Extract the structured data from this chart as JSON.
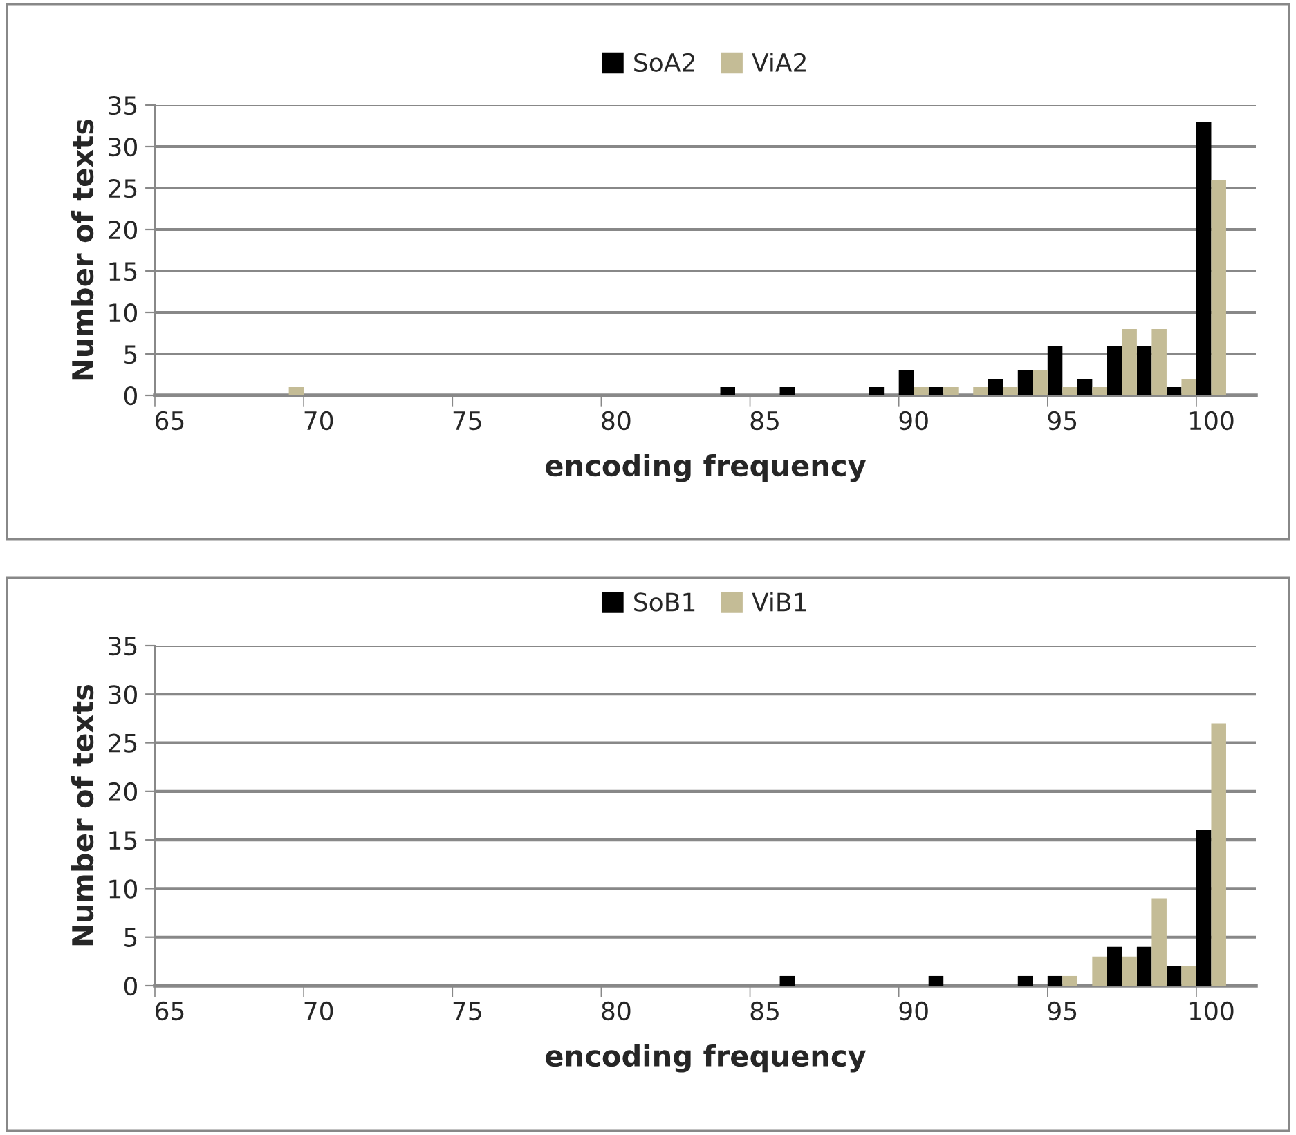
{
  "chart_data": [
    {
      "type": "bar",
      "xlabel": "encoding frequency",
      "ylabel": "Number of texts",
      "categories": [
        "65",
        null,
        null,
        null,
        null,
        "70",
        null,
        null,
        null,
        null,
        "75",
        null,
        null,
        null,
        null,
        "80",
        null,
        null,
        null,
        null,
        "85",
        null,
        null,
        null,
        null,
        "90",
        null,
        null,
        null,
        null,
        "95",
        null,
        null,
        null,
        null,
        "100",
        null
      ],
      "series": [
        {
          "name": "SoA2",
          "color": "#000000",
          "values": [
            0,
            0,
            0,
            0,
            0,
            0,
            0,
            0,
            0,
            0,
            0,
            0,
            0,
            0,
            0,
            0,
            0,
            0,
            0,
            1,
            0,
            1,
            0,
            0,
            1,
            3,
            1,
            0,
            2,
            3,
            6,
            2,
            6,
            6,
            1,
            33,
            0
          ]
        },
        {
          "name": "ViA2",
          "color": "#c4bc96",
          "values": [
            0,
            0,
            0,
            0,
            1,
            0,
            0,
            0,
            0,
            0,
            0,
            0,
            0,
            0,
            0,
            0,
            0,
            0,
            0,
            0,
            0,
            0,
            0,
            0,
            0,
            1,
            1,
            1,
            1,
            3,
            1,
            1,
            8,
            8,
            2,
            26,
            0
          ]
        }
      ],
      "ylim": [
        0,
        35
      ],
      "yticks": [
        0,
        5,
        10,
        15,
        20,
        25,
        30,
        35
      ],
      "grid": "y",
      "legend": "top"
    },
    {
      "type": "bar",
      "xlabel": "encoding frequency",
      "ylabel": "Number of texts",
      "categories": [
        "65",
        null,
        null,
        null,
        null,
        "70",
        null,
        null,
        null,
        null,
        "75",
        null,
        null,
        null,
        null,
        "80",
        null,
        null,
        null,
        null,
        "85",
        null,
        null,
        null,
        null,
        "90",
        null,
        null,
        null,
        null,
        "95",
        null,
        null,
        null,
        null,
        "100",
        null
      ],
      "series": [
        {
          "name": "SoB1",
          "color": "#000000",
          "values": [
            0,
            0,
            0,
            0,
            0,
            0,
            0,
            0,
            0,
            0,
            0,
            0,
            0,
            0,
            0,
            0,
            0,
            0,
            0,
            0,
            0,
            1,
            0,
            0,
            0,
            0,
            1,
            0,
            0,
            1,
            1,
            0,
            4,
            4,
            2,
            16,
            0
          ]
        },
        {
          "name": "ViB1",
          "color": "#c4bc96",
          "values": [
            0,
            0,
            0,
            0,
            0,
            0,
            0,
            0,
            0,
            0,
            0,
            0,
            0,
            0,
            0,
            0,
            0,
            0,
            0,
            0,
            0,
            0,
            0,
            0,
            0,
            0,
            0,
            0,
            0,
            0,
            1,
            3,
            3,
            9,
            2,
            27,
            0
          ]
        }
      ],
      "ylim": [
        0,
        35
      ],
      "yticks": [
        0,
        5,
        10,
        15,
        20,
        25,
        30,
        35
      ],
      "grid": "y",
      "legend": "top"
    }
  ]
}
